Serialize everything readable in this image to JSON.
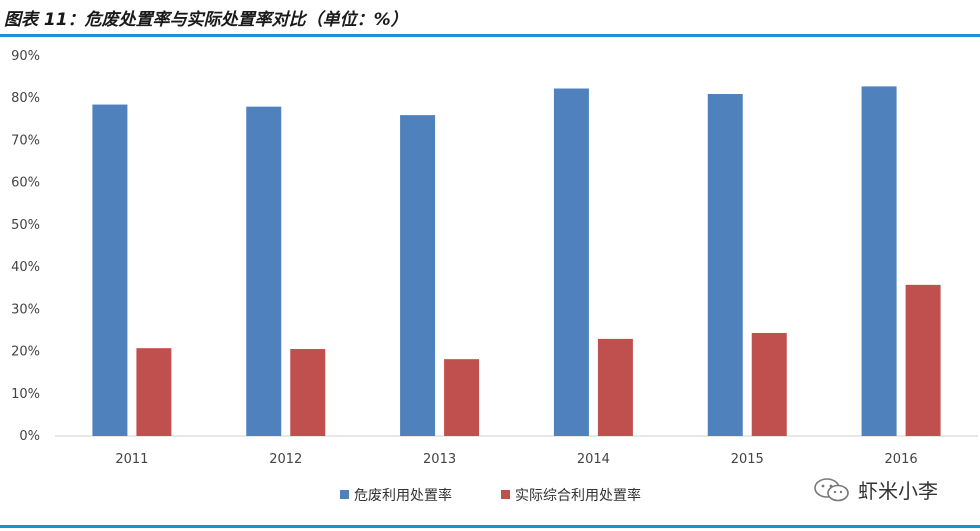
{
  "header": {
    "title": "图表 11：危废处置率与实际处置率对比（单位：%）"
  },
  "chart_data": {
    "type": "bar",
    "title": "图表 11：危废处置率与实际处置率对比（单位：%）",
    "categories": [
      "2011",
      "2012",
      "2013",
      "2014",
      "2015",
      "2016"
    ],
    "series": [
      {
        "name": "危废利用处置率",
        "color": "#4f81bd",
        "values": [
          78.5,
          78.0,
          76.0,
          82.3,
          81.0,
          82.8
        ]
      },
      {
        "name": "实际综合利用处置率",
        "color": "#c0504d",
        "values": [
          20.8,
          20.6,
          18.2,
          23.0,
          24.4,
          35.8
        ]
      }
    ],
    "yticks": [
      "0%",
      "10%",
      "20%",
      "30%",
      "40%",
      "50%",
      "60%",
      "70%",
      "80%",
      "90%"
    ],
    "ylim": [
      0,
      90
    ],
    "xlabel": "",
    "ylabel": "",
    "grid": false,
    "legend": "bottom"
  },
  "watermark": {
    "text": "虾米小李"
  }
}
